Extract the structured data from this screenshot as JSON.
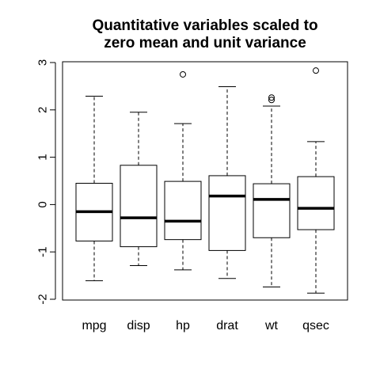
{
  "chart_data": {
    "type": "boxplot",
    "title_lines": [
      "Quantitative variables scaled to",
      "zero mean and unit variance"
    ],
    "xlabel": "",
    "ylabel": "",
    "ylim": [
      -2,
      3
    ],
    "yticks": [
      -2,
      -1,
      0,
      1,
      2,
      3
    ],
    "ytick_labels": [
      "-2",
      "-1",
      "0",
      "1",
      "2",
      "3"
    ],
    "grid": false,
    "categories": [
      "mpg",
      "disp",
      "hp",
      "drat",
      "wt",
      "qsec"
    ],
    "boxes": [
      {
        "whisker_low": -1.61,
        "q1": -0.77,
        "median": -0.15,
        "q3": 0.45,
        "whisker_high": 2.29,
        "outliers": []
      },
      {
        "whisker_low": -1.29,
        "q1": -0.89,
        "median": -0.28,
        "q3": 0.83,
        "whisker_high": 1.95,
        "outliers": []
      },
      {
        "whisker_low": -1.38,
        "q1": -0.74,
        "median": -0.35,
        "q3": 0.49,
        "whisker_high": 1.71,
        "outliers": [
          2.75
        ]
      },
      {
        "whisker_low": -1.56,
        "q1": -0.97,
        "median": 0.18,
        "q3": 0.61,
        "whisker_high": 2.49,
        "outliers": []
      },
      {
        "whisker_low": -1.74,
        "q1": -0.7,
        "median": 0.11,
        "q3": 0.44,
        "whisker_high": 2.08,
        "outliers": [
          2.21,
          2.26
        ]
      },
      {
        "whisker_low": -1.87,
        "q1": -0.53,
        "median": -0.08,
        "q3": 0.59,
        "whisker_high": 1.33,
        "outliers": [
          2.83
        ]
      }
    ]
  }
}
